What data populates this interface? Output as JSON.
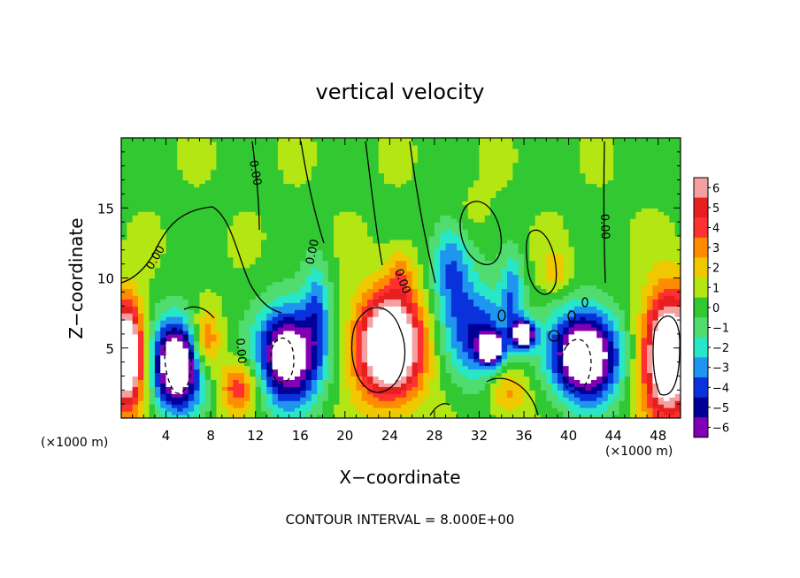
{
  "chart_data": {
    "type": "heatmap",
    "title": "vertical velocity",
    "xlabel": "X−coordinate",
    "ylabel": "Z−coordinate",
    "x_unit_left": "(×1000 m)",
    "x_unit_right": "(×1000 m)",
    "footer": "CONTOUR INTERVAL = 8.000E+00",
    "xlim": [
      0,
      50
    ],
    "ylim": [
      0,
      20
    ],
    "x_ticks": [
      4,
      8,
      12,
      16,
      20,
      24,
      28,
      32,
      36,
      40,
      44,
      48
    ],
    "y_ticks": [
      5,
      10,
      15
    ],
    "colorbar": {
      "levels": [
        6,
        5,
        4,
        3,
        2,
        1,
        0,
        -1,
        -2,
        -3,
        -4,
        -5,
        -6
      ],
      "level_labels": [
        "6",
        "5",
        "4",
        "3",
        "2",
        "1",
        "0",
        "−1",
        "−2",
        "−3",
        "−4",
        "−5",
        "−6"
      ],
      "colors": [
        "#f4a0a0",
        "#e81f1f",
        "#ff3030",
        "#ff8c00",
        "#f0c800",
        "#b4e614",
        "#32c832",
        "#50dc6e",
        "#28e6c8",
        "#1e96f0",
        "#0a32dc",
        "#000096",
        "#8200b4"
      ]
    },
    "contour_labels": [
      "0.00",
      "0.00",
      "0.00",
      "0.00",
      "0.00",
      "0.00"
    ],
    "features": [
      {
        "x": 0.5,
        "z": 4.5,
        "rx": 1.5,
        "rz": 3.8,
        "w": 10
      },
      {
        "x": 5,
        "z": 3.8,
        "rx": 2.2,
        "rz": 3.2,
        "w": -10
      },
      {
        "x": 7.5,
        "z": 5.5,
        "rx": 1.3,
        "rz": 2.2,
        "w": 4
      },
      {
        "x": 10.5,
        "z": 2.2,
        "rx": 1.7,
        "rz": 1.8,
        "w": 4
      },
      {
        "x": 15,
        "z": 4.5,
        "rx": 2.8,
        "rz": 3.5,
        "w": -9
      },
      {
        "x": 17.5,
        "z": 8,
        "rx": 1.2,
        "rz": 3.5,
        "w": -3
      },
      {
        "x": 24,
        "z": 5.2,
        "rx": 3.0,
        "rz": 3.8,
        "w": 10
      },
      {
        "x": 25,
        "z": 10.5,
        "rx": 1.2,
        "rz": 1.8,
        "w": 2
      },
      {
        "x": 29.5,
        "z": 11,
        "rx": 1.8,
        "rz": 3.5,
        "w": -4
      },
      {
        "x": 32,
        "z": 6,
        "rx": 3.0,
        "rz": 3.5,
        "w": -5
      },
      {
        "x": 33,
        "z": 5,
        "rx": 1.0,
        "rz": 1.0,
        "w": -9
      },
      {
        "x": 36,
        "z": 6,
        "rx": 1.0,
        "rz": 1.0,
        "w": -9
      },
      {
        "x": 35,
        "z": 9,
        "rx": 1.0,
        "rz": 3.0,
        "w": -3
      },
      {
        "x": 34.5,
        "z": 2,
        "rx": 1.8,
        "rz": 1.8,
        "w": 3
      },
      {
        "x": 41.5,
        "z": 4.5,
        "rx": 3.0,
        "rz": 3.2,
        "w": -10
      },
      {
        "x": 49,
        "z": 4.5,
        "rx": 2.4,
        "rz": 4.5,
        "w": 10
      },
      {
        "x": 38.8,
        "z": 10.5,
        "rx": 1.3,
        "rz": 1.5,
        "w": 2
      },
      {
        "x": 31,
        "z": 14.5,
        "rx": 2.0,
        "rz": 2.0,
        "w": 0.8
      }
    ]
  }
}
